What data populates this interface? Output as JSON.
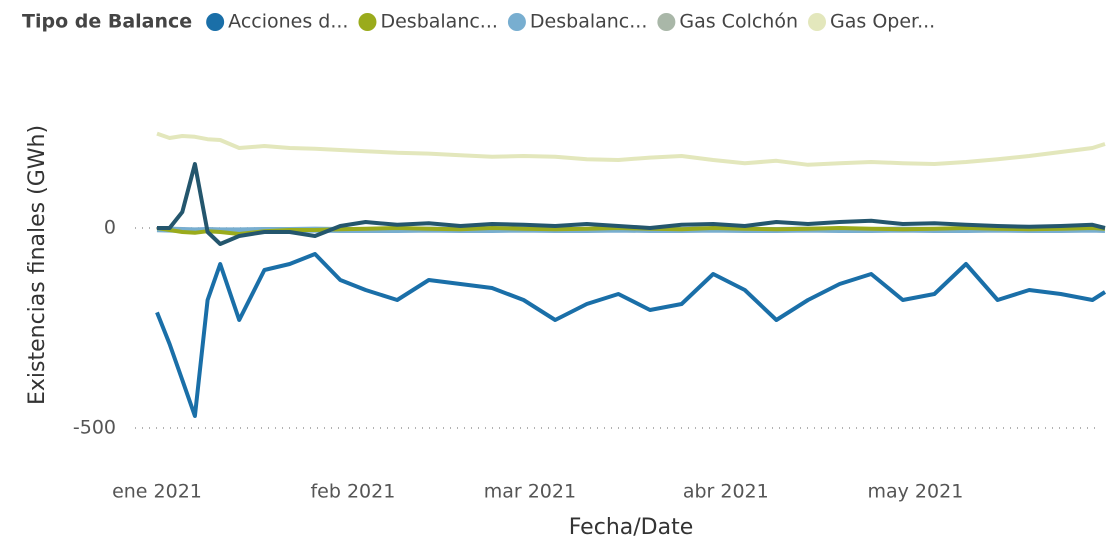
{
  "chart_data": {
    "type": "line",
    "legend_title": "Tipo de Balance",
    "y_label": "Existencias finales (GWh)",
    "x_label": "Fecha/Date",
    "x": [
      "2021-01-01",
      "2021-01-03",
      "2021-01-05",
      "2021-01-07",
      "2021-01-09",
      "2021-01-11",
      "2021-01-14",
      "2021-01-18",
      "2021-01-22",
      "2021-01-26",
      "2021-01-30",
      "2021-02-03",
      "2021-02-08",
      "2021-02-13",
      "2021-02-18",
      "2021-02-23",
      "2021-02-28",
      "2021-03-05",
      "2021-03-10",
      "2021-03-15",
      "2021-03-20",
      "2021-03-25",
      "2021-03-30",
      "2021-04-04",
      "2021-04-09",
      "2021-04-14",
      "2021-04-19",
      "2021-04-24",
      "2021-04-29",
      "2021-05-04",
      "2021-05-09",
      "2021-05-14",
      "2021-05-19",
      "2021-05-24",
      "2021-05-29",
      "2021-05-31"
    ],
    "xlim": [
      "2021-01-01",
      "2021-05-31"
    ],
    "xticks": [
      {
        "value": "2021-01-01",
        "label": "ene 2021"
      },
      {
        "value": "2021-02-01",
        "label": "feb 2021"
      },
      {
        "value": "2021-03-01",
        "label": "mar 2021"
      },
      {
        "value": "2021-04-01",
        "label": "abr 2021"
      },
      {
        "value": "2021-05-01",
        "label": "may 2021"
      }
    ],
    "ylim": [
      -530,
      320
    ],
    "yticks": [
      -500,
      0
    ],
    "grid": true,
    "series": [
      {
        "name": "Acciones d...",
        "color": "#1a6fa8",
        "values": [
          -211,
          -290,
          -380,
          -470,
          -180,
          -90,
          -230,
          -105,
          -90,
          -65,
          -130,
          -155,
          -180,
          -130,
          -140,
          -150,
          -180,
          -230,
          -190,
          -165,
          -205,
          -190,
          -115,
          -155,
          -230,
          -180,
          -140,
          -115,
          -180,
          -165,
          -90,
          -180,
          -155,
          -165,
          -180,
          -160
        ]
      },
      {
        "name": "Desbalanc...",
        "color": "#9aab1c",
        "values": [
          0,
          -5,
          -10,
          -12,
          -8,
          -10,
          -15,
          -8,
          -5,
          -5,
          -3,
          -2,
          0,
          -2,
          -3,
          0,
          -2,
          -3,
          -2,
          0,
          -2,
          -3,
          0,
          -2,
          -3,
          -2,
          0,
          -2,
          -3,
          -2,
          0,
          -2,
          -3,
          -2,
          0,
          -2
        ]
      },
      {
        "name": "Desbalanc...",
        "color": "#78aed0",
        "values": [
          -3,
          -4,
          -5,
          -6,
          -5,
          -6,
          -6,
          -5,
          -5,
          -4,
          -5,
          -5,
          -5,
          -4,
          -5,
          -5,
          -4,
          -5,
          -5,
          -4,
          -5,
          -5,
          -4,
          -5,
          -5,
          -4,
          -5,
          -5,
          -4,
          -5,
          -5,
          -4,
          -5,
          -5,
          -4,
          -5
        ]
      },
      {
        "name": "Gas Colchón",
        "color": "#a9b7a8",
        "line_color": "#24566d",
        "values": [
          0,
          0,
          40,
          160,
          -10,
          -40,
          -20,
          -10,
          -10,
          -20,
          5,
          15,
          8,
          12,
          5,
          10,
          8,
          5,
          10,
          5,
          0,
          8,
          10,
          5,
          15,
          10,
          15,
          18,
          10,
          12,
          8,
          5,
          3,
          5,
          8,
          0
        ]
      },
      {
        "name": "Gas Oper...",
        "color": "#e3e7bc",
        "values": [
          236,
          225,
          230,
          228,
          222,
          220,
          200,
          205,
          200,
          198,
          195,
          192,
          188,
          186,
          182,
          178,
          180,
          178,
          172,
          170,
          176,
          180,
          170,
          162,
          168,
          158,
          162,
          165,
          162,
          160,
          165,
          172,
          180,
          190,
          200,
          210
        ]
      }
    ]
  }
}
